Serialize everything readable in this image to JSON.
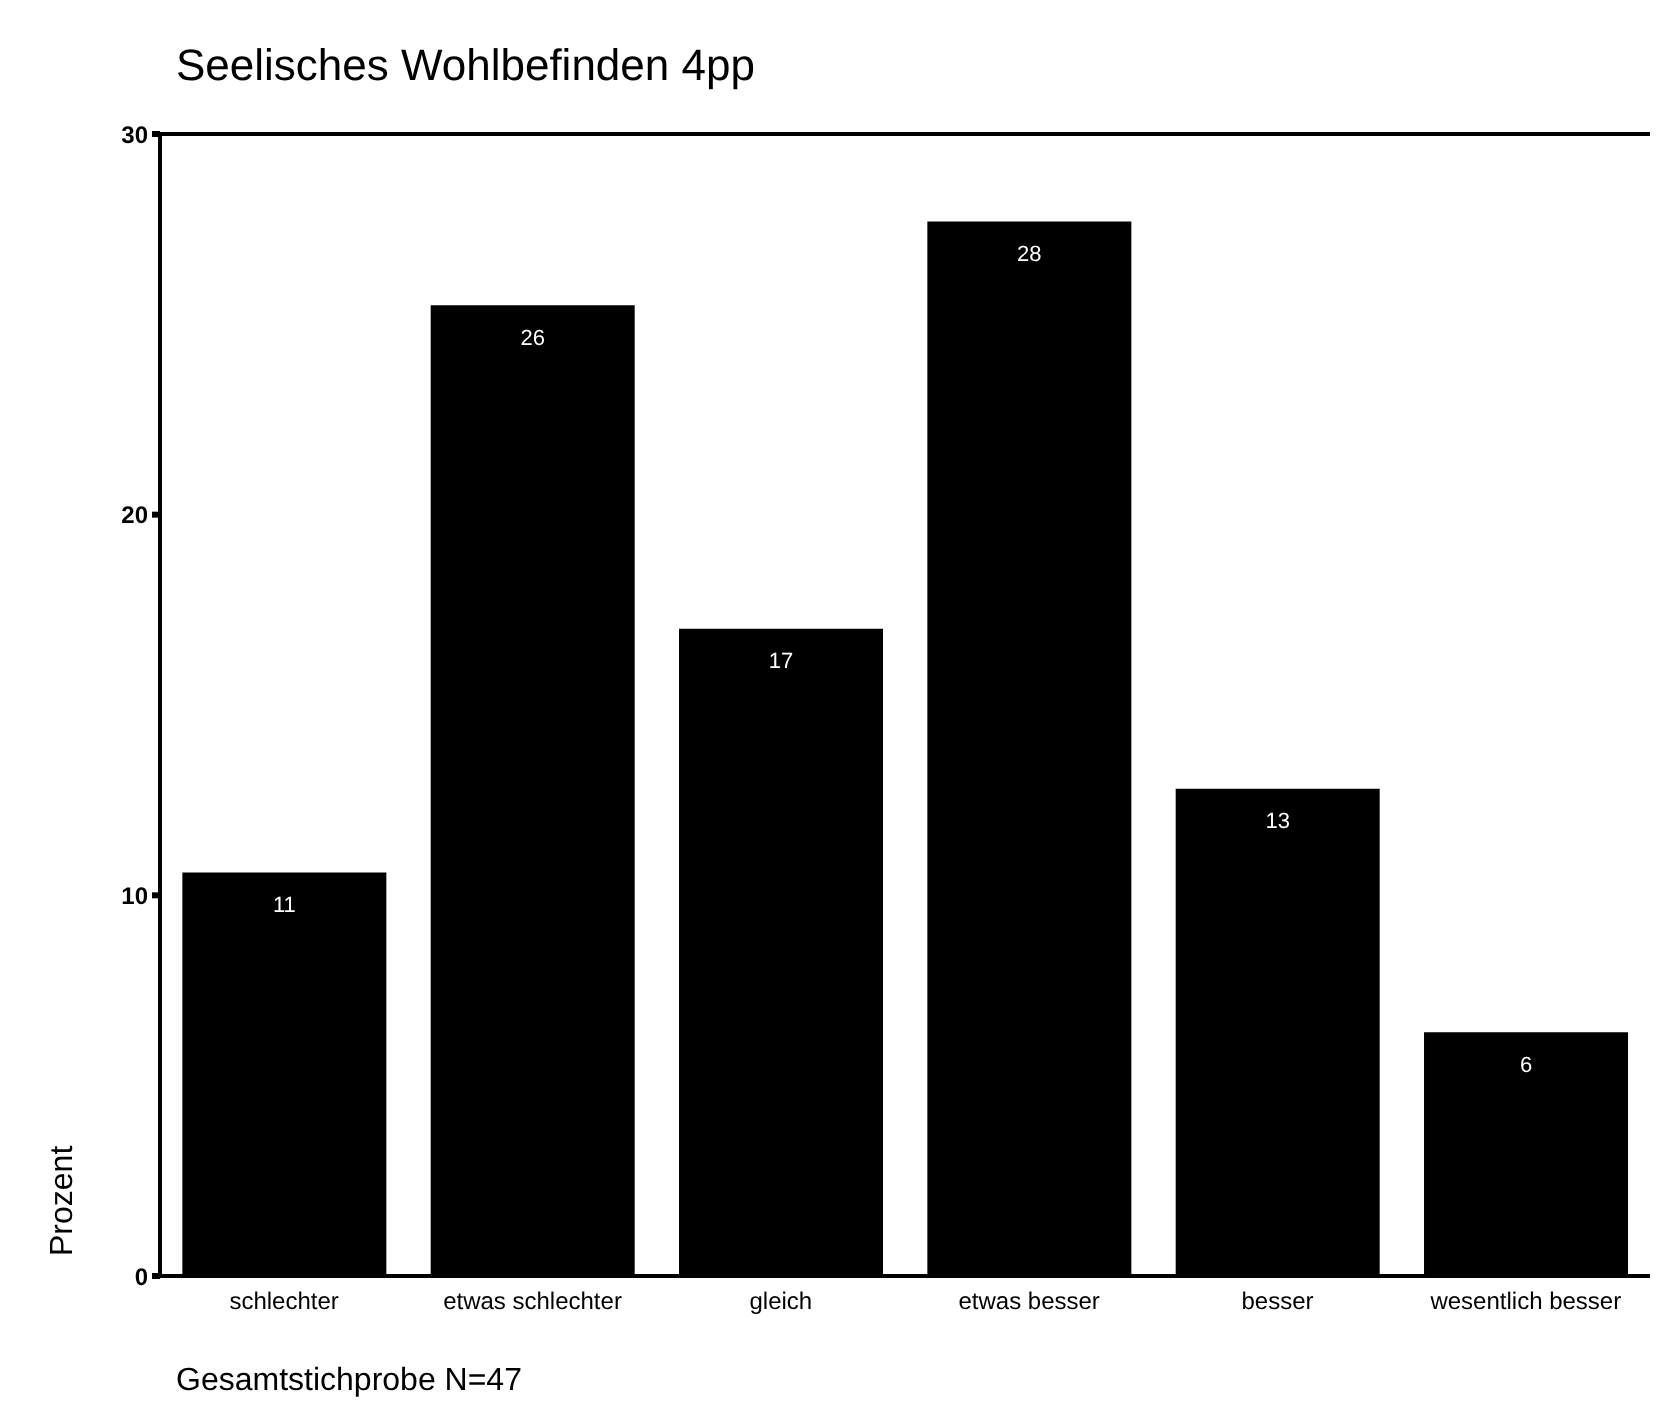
{
  "chart_data": {
    "type": "bar",
    "title": "Seelisches Wohlbefinden 4pp",
    "ylabel": "Prozent",
    "categories": [
      "schlechter",
      "etwas schlechter",
      "gleich",
      "etwas besser",
      "besser",
      "wesentlich besser"
    ],
    "values": [
      10.6,
      25.5,
      17.0,
      27.7,
      12.8,
      6.4
    ],
    "value_labels": [
      "11",
      "26",
      "17",
      "28",
      "13",
      "6"
    ],
    "color": "#000000",
    "ylim": [
      0,
      30
    ],
    "yticks": [
      0,
      10,
      20,
      30
    ],
    "annotations": [
      "Gesamtstichprobe N=47"
    ]
  }
}
